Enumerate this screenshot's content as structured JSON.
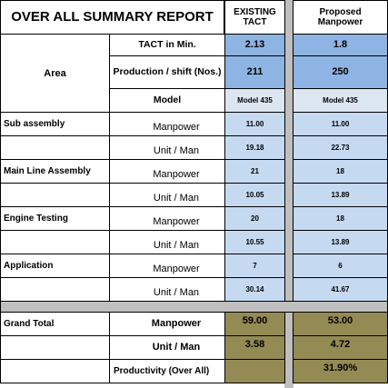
{
  "header": {
    "title": "OVER ALL SUMMARY REPORT",
    "existing": "EXISTING TACT",
    "proposed": "Proposed Manpower"
  },
  "area": {
    "label": "Area",
    "rows": [
      {
        "label": "TACT in Min.",
        "existing": "2.13",
        "proposed": "1.8"
      },
      {
        "label": "Production / shift (Nos.)",
        "existing": "211",
        "proposed": "250"
      },
      {
        "label": "Model",
        "existing": "Model 435",
        "proposed": "Model 435"
      }
    ]
  },
  "sections": [
    {
      "name": "Sub assembly",
      "rows": [
        {
          "label": "Manpower",
          "existing": "11.00",
          "proposed": "11.00"
        },
        {
          "label": "Unit / Man",
          "existing": "19.18",
          "proposed": "22.73"
        }
      ]
    },
    {
      "name": "Main Line Assembly",
      "rows": [
        {
          "label": "Manpower",
          "existing": "21",
          "proposed": "18"
        },
        {
          "label": "Unit / Man",
          "existing": "10.05",
          "proposed": "13.89"
        }
      ]
    },
    {
      "name": "Engine Testing",
      "rows": [
        {
          "label": "Manpower",
          "existing": "20",
          "proposed": "18"
        },
        {
          "label": "Unit / Man",
          "existing": "10.55",
          "proposed": "13.89"
        }
      ]
    },
    {
      "name": "Application",
      "rows": [
        {
          "label": "Manpower",
          "existing": "7",
          "proposed": "6"
        },
        {
          "label": "Unit / Man",
          "existing": "30.14",
          "proposed": "41.67"
        }
      ]
    }
  ],
  "grand_total": {
    "name": "Grand Total",
    "rows": [
      {
        "label": "Manpower",
        "existing": "59.00",
        "proposed": "53.00"
      },
      {
        "label": "Unit / Man",
        "existing": "3.58",
        "proposed": "4.72"
      },
      {
        "label": "Productivity (Over All)",
        "proposed": "31.90%"
      }
    ]
  }
}
